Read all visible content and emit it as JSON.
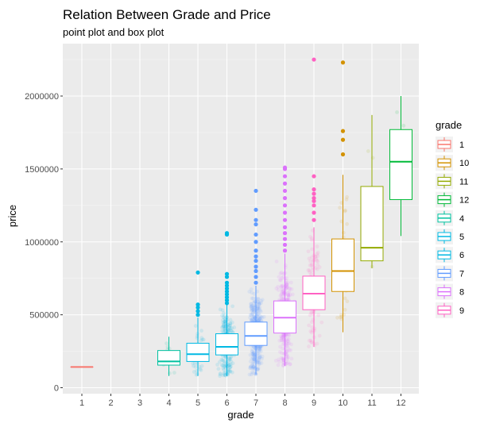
{
  "chart_data": {
    "type": "box",
    "title": "Relation Between Grade and Price",
    "subtitle": "point plot and box plot",
    "xlabel": "grade",
    "ylabel": "price",
    "ylim": [
      0,
      2300000
    ],
    "y_ticks": [
      0,
      500000,
      1000000,
      1500000,
      2000000
    ],
    "y_tick_labels": [
      "0",
      "500000",
      "1000000",
      "1500000",
      "2000000"
    ],
    "categories": [
      "1",
      "2",
      "3",
      "4",
      "5",
      "6",
      "7",
      "8",
      "9",
      "10",
      "11",
      "12"
    ],
    "legend_title": "grade",
    "legend_placement": "right",
    "legend_order": [
      "1",
      "10",
      "11",
      "12",
      "4",
      "5",
      "6",
      "7",
      "8",
      "9"
    ],
    "grid": true,
    "panel_background": "#ebebeb",
    "colors": {
      "1": "#F8766D",
      "10": "#D39200",
      "11": "#93AA00",
      "12": "#00BA38",
      "4": "#00C19F",
      "5": "#00B9E3",
      "6": "#00B9E3",
      "7": "#619CFF",
      "8": "#DB72FB",
      "9": "#FF61C3"
    },
    "boxes": [
      {
        "grade": "1",
        "min": 142000,
        "q1": 142000,
        "median": 142000,
        "q3": 142000,
        "max": 142000,
        "outliers": []
      },
      {
        "grade": "4",
        "min": 80000,
        "q1": 155000,
        "median": 180000,
        "q3": 255000,
        "max": 350000,
        "outliers": []
      },
      {
        "grade": "5",
        "min": 80000,
        "q1": 180000,
        "median": 230000,
        "q3": 305000,
        "max": 480000,
        "outliers": [
          500000,
          525000,
          550000,
          570000,
          790000
        ]
      },
      {
        "grade": "6",
        "min": 80000,
        "q1": 225000,
        "median": 280000,
        "q3": 370000,
        "max": 570000,
        "outliers": [
          580000,
          600000,
          620000,
          640000,
          660000,
          680000,
          700000,
          720000,
          760000,
          780000,
          1050000,
          1060000
        ]
      },
      {
        "grade": "7",
        "min": 90000,
        "q1": 290000,
        "median": 355000,
        "q3": 450000,
        "max": 700000,
        "outliers": [
          720000,
          760000,
          800000,
          830000,
          870000,
          900000,
          940000,
          1000000,
          1050000,
          1120000,
          1150000,
          1220000,
          1350000
        ]
      },
      {
        "grade": "8",
        "min": 150000,
        "q1": 375000,
        "median": 480000,
        "q3": 595000,
        "max": 920000,
        "outliers": [
          940000,
          980000,
          1020000,
          1060000,
          1100000,
          1150000,
          1200000,
          1250000,
          1300000,
          1350000,
          1400000,
          1450000,
          1500000,
          1510000
        ]
      },
      {
        "grade": "9",
        "min": 280000,
        "q1": 535000,
        "median": 645000,
        "q3": 765000,
        "max": 1100000,
        "outliers": [
          1150000,
          1200000,
          1250000,
          1280000,
          1300000,
          1330000,
          1360000,
          1450000,
          2250000
        ]
      },
      {
        "grade": "10",
        "min": 380000,
        "q1": 660000,
        "median": 800000,
        "q3": 1020000,
        "max": 1460000,
        "outliers": [
          1600000,
          1700000,
          1760000,
          2230000
        ]
      },
      {
        "grade": "11",
        "min": 820000,
        "q1": 870000,
        "median": 960000,
        "q3": 1380000,
        "max": 1870000,
        "outliers": []
      },
      {
        "grade": "12",
        "min": 1040000,
        "q1": 1290000,
        "median": 1550000,
        "q3": 1770000,
        "max": 2000000,
        "outliers": []
      }
    ],
    "jitter_points_per_grade": {
      "4": 10,
      "5": 40,
      "6": 260,
      "7": 420,
      "8": 320,
      "9": 120,
      "10": 30,
      "11": 8,
      "12": 4
    }
  }
}
